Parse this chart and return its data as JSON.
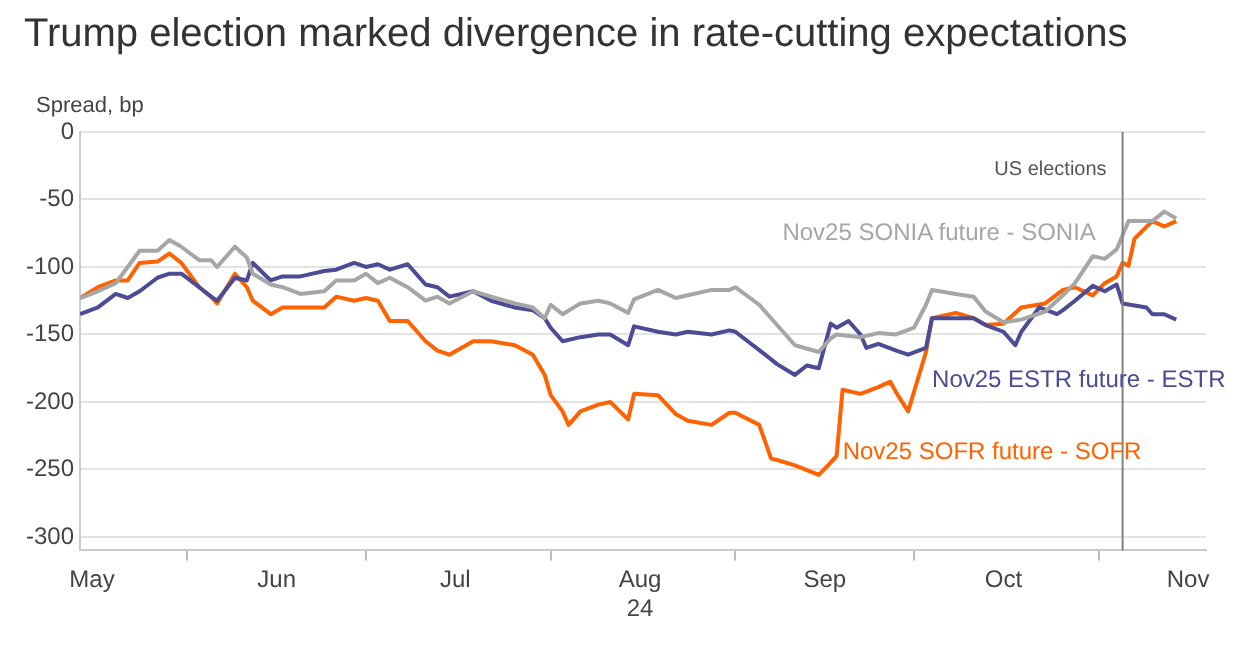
{
  "chart_data": {
    "type": "line",
    "title": "Trump election marked divergence in rate-cutting expectations",
    "ylabel": "Spread, bp",
    "xlim": [
      "2024-05-14",
      "2024-11-19"
    ],
    "xticks": [
      {
        "value": "2024-05-16",
        "label": "May"
      },
      {
        "value": "2024-06-01",
        "label": null
      },
      {
        "value": "2024-06-16",
        "label": "Jun"
      },
      {
        "value": "2024-07-01",
        "label": null
      },
      {
        "value": "2024-07-16",
        "label": "Jul"
      },
      {
        "value": "2024-08-01",
        "label": null
      },
      {
        "value": "2024-08-16",
        "label": "Aug\n24"
      },
      {
        "value": "2024-09-01",
        "label": null
      },
      {
        "value": "2024-09-16",
        "label": "Sep"
      },
      {
        "value": "2024-10-01",
        "label": null
      },
      {
        "value": "2024-10-16",
        "label": "Oct"
      },
      {
        "value": "2024-11-01",
        "label": null
      },
      {
        "value": "2024-11-16",
        "label": "Nov"
      }
    ],
    "ylim": [
      -310,
      0
    ],
    "yticks": [
      -300,
      -250,
      -200,
      -150,
      -100,
      -50,
      0
    ],
    "grid": "y",
    "legend": false,
    "marker": "none",
    "line_style": "solid",
    "ref_lines": [
      {
        "axis": "x",
        "value": "2024-11-05",
        "label": "US elections",
        "color": "#808080"
      }
    ],
    "series": [
      {
        "name": "Nov25 SONIA future - SONIA",
        "color": "#a6a6a6",
        "x": [
          "2024-05-14",
          "2024-05-17",
          "2024-05-20",
          "2024-05-22",
          "2024-05-24",
          "2024-05-27",
          "2024-05-29",
          "2024-05-31",
          "2024-06-03",
          "2024-06-05",
          "2024-06-06",
          "2024-06-09",
          "2024-06-11",
          "2024-06-12",
          "2024-06-15",
          "2024-06-17",
          "2024-06-20",
          "2024-06-24",
          "2024-06-26",
          "2024-06-29",
          "2024-07-01",
          "2024-07-03",
          "2024-07-05",
          "2024-07-08",
          "2024-07-11",
          "2024-07-13",
          "2024-07-15",
          "2024-07-19",
          "2024-07-22",
          "2024-07-26",
          "2024-07-29",
          "2024-07-31",
          "2024-08-01",
          "2024-08-03",
          "2024-08-06",
          "2024-08-09",
          "2024-08-11",
          "2024-08-14",
          "2024-08-15",
          "2024-08-19",
          "2024-08-22",
          "2024-08-24",
          "2024-08-28",
          "2024-08-31",
          "2024-09-01",
          "2024-09-05",
          "2024-09-08",
          "2024-09-11",
          "2024-09-15",
          "2024-09-17",
          "2024-09-18",
          "2024-09-22",
          "2024-09-25",
          "2024-09-28",
          "2024-10-01",
          "2024-10-03",
          "2024-10-04",
          "2024-10-08",
          "2024-10-11",
          "2024-10-13",
          "2024-10-16",
          "2024-10-19",
          "2024-10-23",
          "2024-10-26",
          "2024-10-28",
          "2024-10-31",
          "2024-11-02",
          "2024-11-04",
          "2024-11-06",
          "2024-11-10",
          "2024-11-12",
          "2024-11-14"
        ],
        "values": [
          -123,
          -118,
          -112,
          -100,
          -88,
          -88,
          -80,
          -85,
          -95,
          -95,
          -100,
          -85,
          -93,
          -105,
          -113,
          -115,
          -120,
          -118,
          -110,
          -110,
          -105,
          -112,
          -108,
          -115,
          -125,
          -122,
          -127,
          -118,
          -122,
          -127,
          -130,
          -138,
          -128,
          -135,
          -127,
          -125,
          -127,
          -134,
          -124,
          -117,
          -123,
          -121,
          -117,
          -117,
          -115,
          -128,
          -143,
          -158,
          -163,
          -153,
          -150,
          -152,
          -149,
          -150,
          -145,
          -128,
          -117,
          -120,
          -122,
          -133,
          -141,
          -139,
          -133,
          -121,
          -112,
          -92,
          -94,
          -87,
          -66,
          -66,
          -59,
          -64
        ]
      },
      {
        "name": "Nov25 ESTR future - ESTR",
        "color": "#4b4b96",
        "x": [
          "2024-05-14",
          "2024-05-17",
          "2024-05-20",
          "2024-05-22",
          "2024-05-24",
          "2024-05-27",
          "2024-05-29",
          "2024-05-31",
          "2024-06-03",
          "2024-06-05",
          "2024-06-06",
          "2024-06-09",
          "2024-06-11",
          "2024-06-12",
          "2024-06-15",
          "2024-06-17",
          "2024-06-20",
          "2024-06-24",
          "2024-06-26",
          "2024-06-29",
          "2024-07-01",
          "2024-07-03",
          "2024-07-05",
          "2024-07-08",
          "2024-07-11",
          "2024-07-13",
          "2024-07-15",
          "2024-07-19",
          "2024-07-22",
          "2024-07-26",
          "2024-07-29",
          "2024-07-31",
          "2024-08-01",
          "2024-08-03",
          "2024-08-06",
          "2024-08-09",
          "2024-08-11",
          "2024-08-14",
          "2024-08-15",
          "2024-08-19",
          "2024-08-22",
          "2024-08-24",
          "2024-08-28",
          "2024-08-31",
          "2024-09-01",
          "2024-09-06",
          "2024-09-08",
          "2024-09-11",
          "2024-09-13",
          "2024-09-15",
          "2024-09-17",
          "2024-09-18",
          "2024-09-20",
          "2024-09-22",
          "2024-09-23",
          "2024-09-25",
          "2024-09-28",
          "2024-09-30",
          "2024-10-03",
          "2024-10-04",
          "2024-10-08",
          "2024-10-11",
          "2024-10-13",
          "2024-10-16",
          "2024-10-18",
          "2024-10-19",
          "2024-10-22",
          "2024-10-25",
          "2024-10-26",
          "2024-10-28",
          "2024-10-31",
          "2024-11-02",
          "2024-11-04",
          "2024-11-05",
          "2024-11-09",
          "2024-11-10",
          "2024-11-12",
          "2024-11-14"
        ],
        "values": [
          -135,
          -130,
          -120,
          -123,
          -118,
          -108,
          -105,
          -105,
          -115,
          -122,
          -125,
          -108,
          -110,
          -97,
          -110,
          -107,
          -107,
          -103,
          -102,
          -97,
          -100,
          -98,
          -102,
          -98,
          -113,
          -115,
          -122,
          -118,
          -125,
          -130,
          -132,
          -138,
          -145,
          -155,
          -152,
          -150,
          -150,
          -158,
          -144,
          -148,
          -150,
          -148,
          -150,
          -147,
          -148,
          -165,
          -172,
          -180,
          -173,
          -175,
          -142,
          -145,
          -140,
          -150,
          -160,
          -157,
          -162,
          -165,
          -160,
          -138,
          -138,
          -138,
          -143,
          -148,
          -158,
          -148,
          -130,
          -135,
          -132,
          -125,
          -114,
          -118,
          -113,
          -127,
          -130,
          -135,
          -135,
          -139
        ]
      },
      {
        "name": "Nov25 SOFR future - SOFR",
        "color": "#ff6200",
        "x": [
          "2024-05-14",
          "2024-05-17",
          "2024-05-20",
          "2024-05-22",
          "2024-05-24",
          "2024-05-27",
          "2024-05-29",
          "2024-05-31",
          "2024-06-03",
          "2024-06-05",
          "2024-06-06",
          "2024-06-09",
          "2024-06-11",
          "2024-06-12",
          "2024-06-15",
          "2024-06-17",
          "2024-06-20",
          "2024-06-24",
          "2024-06-26",
          "2024-06-29",
          "2024-07-01",
          "2024-07-03",
          "2024-07-05",
          "2024-07-08",
          "2024-07-11",
          "2024-07-13",
          "2024-07-15",
          "2024-07-19",
          "2024-07-22",
          "2024-07-26",
          "2024-07-29",
          "2024-07-31",
          "2024-08-01",
          "2024-08-03",
          "2024-08-04",
          "2024-08-06",
          "2024-08-09",
          "2024-08-11",
          "2024-08-14",
          "2024-08-15",
          "2024-08-19",
          "2024-08-22",
          "2024-08-24",
          "2024-08-28",
          "2024-08-31",
          "2024-09-01",
          "2024-09-05",
          "2024-09-07",
          "2024-09-08",
          "2024-09-11",
          "2024-09-15",
          "2024-09-17",
          "2024-09-18",
          "2024-09-19",
          "2024-09-22",
          "2024-09-25",
          "2024-09-27",
          "2024-09-28",
          "2024-09-30",
          "2024-10-03",
          "2024-10-04",
          "2024-10-08",
          "2024-10-11",
          "2024-10-13",
          "2024-10-16",
          "2024-10-19",
          "2024-10-23",
          "2024-10-26",
          "2024-10-28",
          "2024-10-31",
          "2024-11-02",
          "2024-11-04",
          "2024-11-05",
          "2024-11-06",
          "2024-11-07",
          "2024-11-10",
          "2024-11-12",
          "2024-11-14"
        ],
        "values": [
          -123,
          -115,
          -110,
          -110,
          -97,
          -96,
          -90,
          -97,
          -115,
          -122,
          -127,
          -105,
          -115,
          -125,
          -135,
          -130,
          -130,
          -130,
          -122,
          -125,
          -123,
          -125,
          -140,
          -140,
          -155,
          -162,
          -165,
          -155,
          -155,
          -158,
          -165,
          -180,
          -195,
          -207,
          -217,
          -207,
          -202,
          -200,
          -213,
          -194,
          -195,
          -209,
          -214,
          -217,
          -208,
          -208,
          -217,
          -242,
          -243,
          -247,
          -254,
          -245,
          -240,
          -191,
          -194,
          -189,
          -185,
          -193,
          -207,
          -163,
          -138,
          -134,
          -138,
          -143,
          -142,
          -130,
          -127,
          -117,
          -115,
          -121,
          -112,
          -107,
          -97,
          -99,
          -79,
          -66,
          -70,
          -66
        ]
      }
    ]
  }
}
